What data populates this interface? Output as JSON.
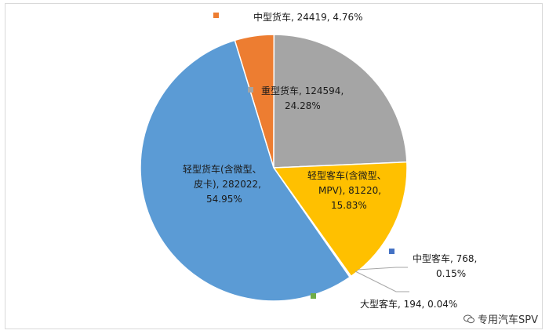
{
  "chart_data": {
    "type": "pie",
    "slices": [
      {
        "name": "中型货车",
        "value": 24419,
        "percent": "4.76%",
        "color": "#ED7D31",
        "label_lines": [
          "中型货车, 24419, 4.76%"
        ]
      },
      {
        "name": "重型货车",
        "value": 124594,
        "percent": "24.28%",
        "color": "#A5A5A5",
        "label_lines": [
          "重型货车, 124594,",
          "24.28%"
        ]
      },
      {
        "name": "轻型客车(含微型、MPV)",
        "value": 81220,
        "percent": "15.83%",
        "color": "#FFC000",
        "label_lines": [
          "轻型客车(含微型、",
          "MPV), 81220,",
          "15.83%"
        ]
      },
      {
        "name": "中型客车",
        "value": 768,
        "percent": "0.15%",
        "color": "#4472C4",
        "label_lines": [
          "中型客车, 768,",
          "0.15%"
        ]
      },
      {
        "name": "大型客车",
        "value": 194,
        "percent": "0.04%",
        "color": "#70AD47",
        "label_lines": [
          "大型客车, 194, 0.04%"
        ]
      },
      {
        "name": "轻型货车(含微型、皮卡)",
        "value": 282022,
        "percent": "54.95%",
        "color": "#5B9BD5",
        "label_lines": [
          "轻型货车(含微型、",
          "皮卡), 282022,",
          "54.95%"
        ]
      }
    ],
    "start_angle_deg": -17
  },
  "watermark": {
    "text": "专用汽车SPV",
    "icon": "wechat-icon"
  }
}
